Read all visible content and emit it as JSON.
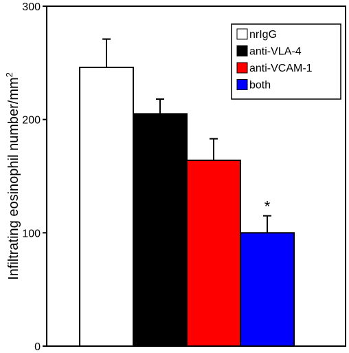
{
  "chart_data": {
    "type": "bar",
    "title": "",
    "xlabel": "",
    "ylabel": "Infiltrating eosinophil number/mm",
    "ylabel_superscript": "2",
    "ylim": [
      0,
      300
    ],
    "yticks": [
      0,
      100,
      200,
      300
    ],
    "ytick_labels": [
      "0",
      "100",
      "200",
      "300"
    ],
    "grid": false,
    "legend_position": "top-right",
    "series": [
      {
        "name": "nrIgG",
        "value": 246,
        "error": 25,
        "color": "#ffffff",
        "annotation": ""
      },
      {
        "name": "anti-VLA-4",
        "value": 205,
        "error": 13,
        "color": "#000000",
        "annotation": ""
      },
      {
        "name": "anti-VCAM-1",
        "value": 164,
        "error": 19,
        "color": "#ff0000",
        "annotation": ""
      },
      {
        "name": "both",
        "value": 100,
        "error": 15,
        "color": "#0000ff",
        "annotation": "*"
      }
    ]
  }
}
